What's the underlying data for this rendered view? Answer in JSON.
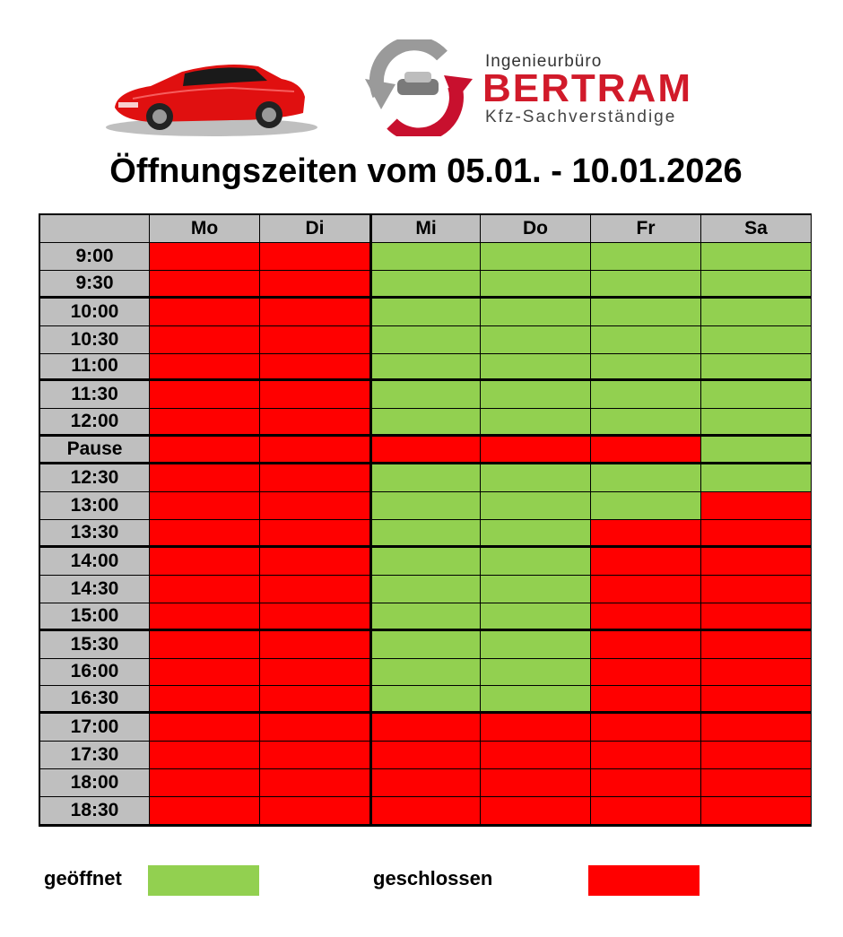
{
  "brand": {
    "top": "Ingenieurbüro",
    "name": "BERTRAM",
    "sub": "Kfz-Sachverständige"
  },
  "title": "Öffnungszeiten vom 05.01. - 10.01.2026",
  "colors": {
    "open": "#92d050",
    "closed": "#ff0000",
    "header": "#bfbfbf",
    "brand": "#d11a2a"
  },
  "schedule": {
    "days": [
      "Mo",
      "Di",
      "Mi",
      "Do",
      "Fr",
      "Sa"
    ],
    "rows": [
      {
        "time": "9:00",
        "status": [
          "closed",
          "closed",
          "open",
          "open",
          "open",
          "open"
        ]
      },
      {
        "time": "9:30",
        "status": [
          "closed",
          "closed",
          "open",
          "open",
          "open",
          "open"
        ]
      },
      {
        "time": "10:00",
        "status": [
          "closed",
          "closed",
          "open",
          "open",
          "open",
          "open"
        ]
      },
      {
        "time": "10:30",
        "status": [
          "closed",
          "closed",
          "open",
          "open",
          "open",
          "open"
        ]
      },
      {
        "time": "11:00",
        "status": [
          "closed",
          "closed",
          "open",
          "open",
          "open",
          "open"
        ]
      },
      {
        "time": "11:30",
        "status": [
          "closed",
          "closed",
          "open",
          "open",
          "open",
          "open"
        ]
      },
      {
        "time": "12:00",
        "status": [
          "closed",
          "closed",
          "open",
          "open",
          "open",
          "open"
        ]
      },
      {
        "time": "Pause",
        "status": [
          "closed",
          "closed",
          "closed",
          "closed",
          "closed",
          "open"
        ]
      },
      {
        "time": "12:30",
        "status": [
          "closed",
          "closed",
          "open",
          "open",
          "open",
          "open"
        ]
      },
      {
        "time": "13:00",
        "status": [
          "closed",
          "closed",
          "open",
          "open",
          "open",
          "closed"
        ]
      },
      {
        "time": "13:30",
        "status": [
          "closed",
          "closed",
          "open",
          "open",
          "closed",
          "closed"
        ]
      },
      {
        "time": "14:00",
        "status": [
          "closed",
          "closed",
          "open",
          "open",
          "closed",
          "closed"
        ]
      },
      {
        "time": "14:30",
        "status": [
          "closed",
          "closed",
          "open",
          "open",
          "closed",
          "closed"
        ]
      },
      {
        "time": "15:00",
        "status": [
          "closed",
          "closed",
          "open",
          "open",
          "closed",
          "closed"
        ]
      },
      {
        "time": "15:30",
        "status": [
          "closed",
          "closed",
          "open",
          "open",
          "closed",
          "closed"
        ]
      },
      {
        "time": "16:00",
        "status": [
          "closed",
          "closed",
          "open",
          "open",
          "closed",
          "closed"
        ]
      },
      {
        "time": "16:30",
        "status": [
          "closed",
          "closed",
          "open",
          "open",
          "closed",
          "closed"
        ]
      },
      {
        "time": "17:00",
        "status": [
          "closed",
          "closed",
          "closed",
          "closed",
          "closed",
          "closed"
        ]
      },
      {
        "time": "17:30",
        "status": [
          "closed",
          "closed",
          "closed",
          "closed",
          "closed",
          "closed"
        ]
      },
      {
        "time": "18:00",
        "status": [
          "closed",
          "closed",
          "closed",
          "closed",
          "closed",
          "closed"
        ]
      },
      {
        "time": "18:30",
        "status": [
          "closed",
          "closed",
          "closed",
          "closed",
          "closed",
          "closed"
        ]
      }
    ]
  },
  "legend": {
    "open_label": "geöffnet",
    "closed_label": "geschlossen"
  }
}
